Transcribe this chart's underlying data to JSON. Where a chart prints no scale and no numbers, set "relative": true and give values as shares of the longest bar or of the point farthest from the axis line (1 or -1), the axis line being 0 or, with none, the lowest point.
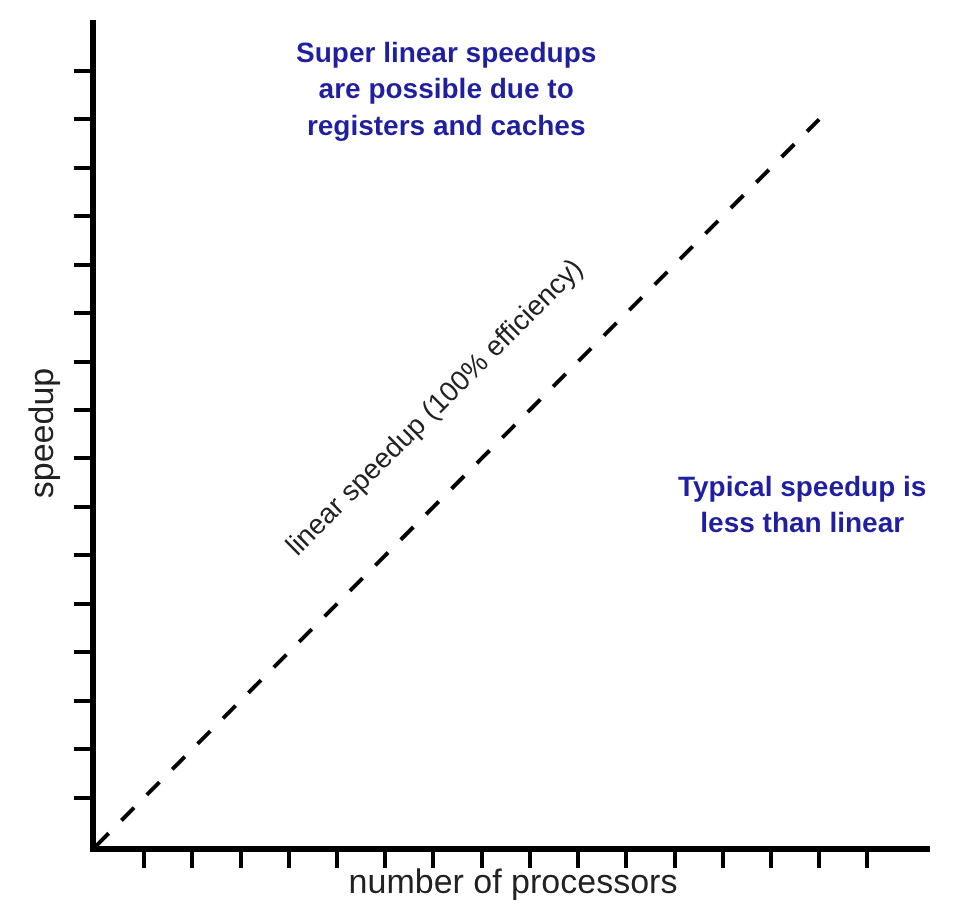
{
  "chart_data": {
    "type": "line",
    "relative": true,
    "xlabel": "number of processors",
    "ylabel": "speedup",
    "categories": [
      null,
      null,
      null,
      null,
      null,
      null,
      null,
      null,
      null,
      null,
      null,
      null,
      null,
      null,
      null,
      null,
      null
    ],
    "series": [
      {
        "name": "linear speedup (100% efficiency)",
        "color": "#000000",
        "values": [
          0,
          0.0667,
          0.1333,
          0.2,
          0.2667,
          0.3333,
          0.4,
          0.4667,
          0.5333,
          0.6,
          0.6667,
          0.7333,
          0.8,
          0.8667,
          0.9333,
          1,
          null
        ]
      }
    ],
    "line_style": "dashed",
    "marker": "none",
    "legend": false,
    "tick_labels": false,
    "annotations": [
      "Super linear speedups\nare possible due to\nregisters and caches",
      "Typical speedup is\nless than linear"
    ]
  }
}
